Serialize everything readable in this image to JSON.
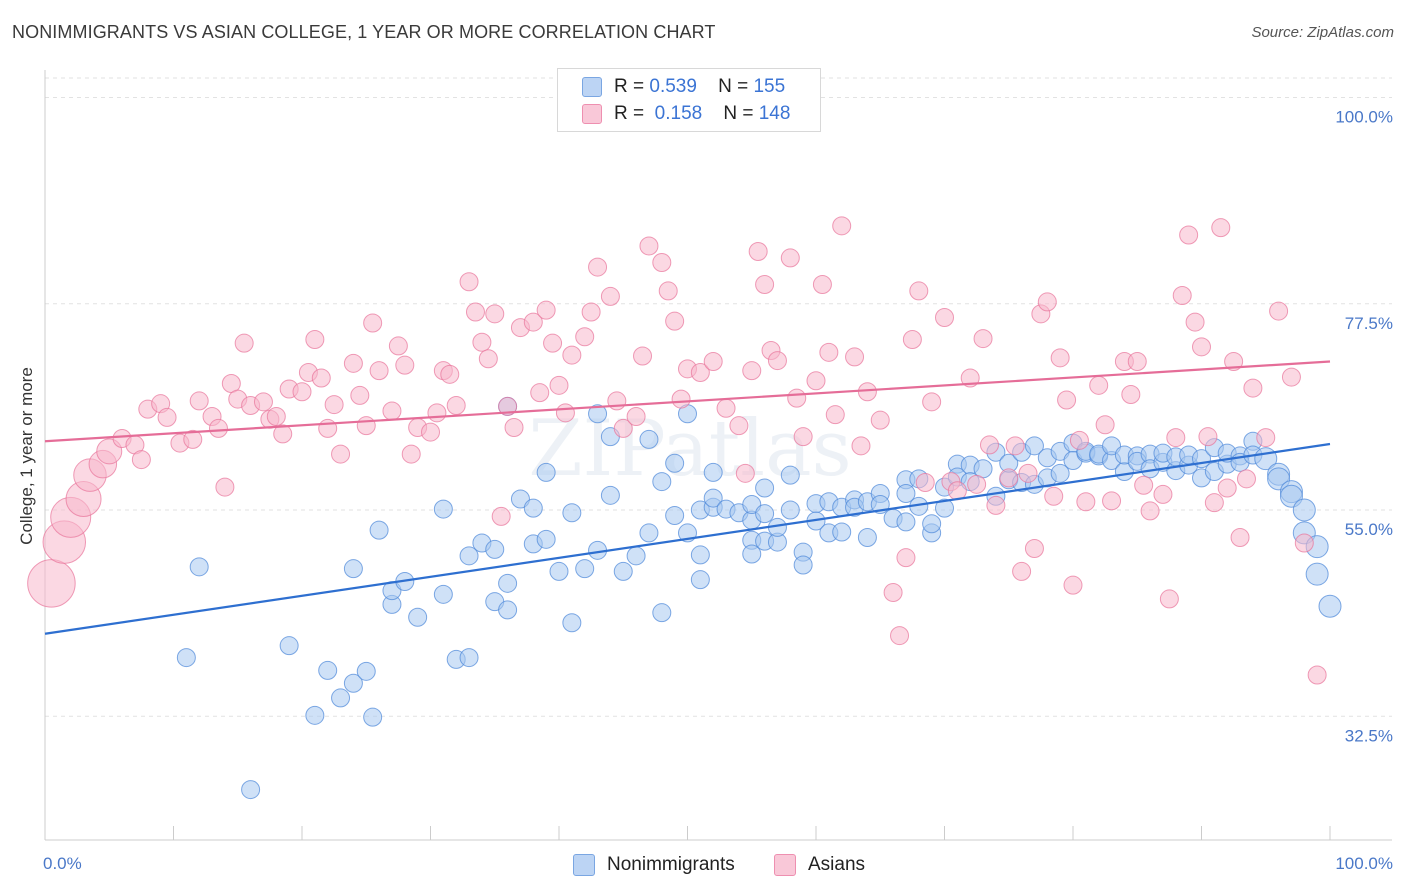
{
  "chart_data": {
    "type": "scatter",
    "title": "NONIMMIGRANTS VS ASIAN COLLEGE, 1 YEAR OR MORE CORRELATION CHART",
    "source": "Source: ZipAtlas.com",
    "xlabel": "",
    "ylabel": "College, 1 year or more",
    "xlim": [
      0,
      100
    ],
    "ylim": [
      19,
      103
    ],
    "x_tick_labels": [
      "0.0%",
      "100.0%"
    ],
    "y_ticks": [
      {
        "value": 100.0,
        "label": "100.0%"
      },
      {
        "value": 77.5,
        "label": "77.5%"
      },
      {
        "value": 55.0,
        "label": "55.0%"
      },
      {
        "value": 32.5,
        "label": "32.5%"
      }
    ],
    "legend": {
      "rows": [
        {
          "r_label": "R =",
          "r_value": "0.539",
          "n_label": "N =",
          "n_value": "155"
        },
        {
          "r_label": "R =",
          "r_value": "0.158",
          "n_label": "N =",
          "n_value": "148"
        }
      ]
    },
    "watermark": "ZIPatlas",
    "series": [
      {
        "name": "Nonimmigrants",
        "color": "#a8c8f0",
        "stroke": "#4a86d8",
        "trend_color": "#2e6fd0",
        "trend": {
          "x0": 0,
          "y0": 41.5,
          "x1": 100,
          "y1": 62.2
        },
        "points": [
          [
            12,
            48.8
          ],
          [
            11,
            38.9
          ],
          [
            19,
            40.2
          ],
          [
            16,
            24.5
          ],
          [
            21,
            32.6
          ],
          [
            22,
            37.5
          ],
          [
            23,
            34.5
          ],
          [
            24,
            36.1
          ],
          [
            25,
            37.4
          ],
          [
            25.5,
            32.4
          ],
          [
            24,
            48.6
          ],
          [
            27,
            44.7
          ],
          [
            27,
            46.2
          ],
          [
            26,
            52.8
          ],
          [
            29,
            43.3
          ],
          [
            28,
            47.2
          ],
          [
            31,
            55.1
          ],
          [
            31,
            45.8
          ],
          [
            33,
            50.0
          ],
          [
            32,
            38.7
          ],
          [
            33,
            38.9
          ],
          [
            34,
            51.4
          ],
          [
            35,
            50.7
          ],
          [
            35,
            45.0
          ],
          [
            36,
            47.0
          ],
          [
            36,
            44.1
          ],
          [
            37,
            56.2
          ],
          [
            36,
            66.3
          ],
          [
            38,
            51.3
          ],
          [
            38,
            55.2
          ],
          [
            39,
            51.8
          ],
          [
            39,
            59.1
          ],
          [
            40,
            48.3
          ],
          [
            41,
            54.7
          ],
          [
            41,
            42.7
          ],
          [
            42,
            48.6
          ],
          [
            43,
            65.5
          ],
          [
            43,
            50.6
          ],
          [
            44,
            56.6
          ],
          [
            44,
            63.0
          ],
          [
            45,
            48.3
          ],
          [
            46,
            50.0
          ],
          [
            47,
            52.5
          ],
          [
            47,
            62.7
          ],
          [
            48,
            58.1
          ],
          [
            48,
            43.8
          ],
          [
            49,
            54.4
          ],
          [
            49,
            60.1
          ],
          [
            50,
            52.5
          ],
          [
            50,
            65.5
          ],
          [
            51,
            47.4
          ],
          [
            51,
            50.1
          ],
          [
            51,
            55.0
          ],
          [
            52,
            59.1
          ],
          [
            52,
            55.3
          ],
          [
            52,
            56.3
          ],
          [
            53,
            55.1
          ],
          [
            54,
            54.7
          ],
          [
            55,
            51.7
          ],
          [
            55,
            53.9
          ],
          [
            55,
            50.2
          ],
          [
            55,
            55.6
          ],
          [
            56,
            51.6
          ],
          [
            56,
            57.4
          ],
          [
            56,
            54.6
          ],
          [
            57,
            51.5
          ],
          [
            57,
            53.1
          ],
          [
            58,
            58.8
          ],
          [
            58,
            55.0
          ],
          [
            59,
            50.4
          ],
          [
            59,
            49.0
          ],
          [
            60,
            55.7
          ],
          [
            60,
            53.8
          ],
          [
            61,
            52.5
          ],
          [
            61,
            55.9
          ],
          [
            62,
            52.6
          ],
          [
            62,
            55.3
          ],
          [
            63,
            56.1
          ],
          [
            63,
            55.3
          ],
          [
            64,
            55.9
          ],
          [
            64,
            52.0
          ],
          [
            65,
            56.8
          ],
          [
            65,
            55.6
          ],
          [
            66,
            54.1
          ],
          [
            67,
            53.7
          ],
          [
            67,
            58.3
          ],
          [
            67,
            56.8
          ],
          [
            68,
            55.4
          ],
          [
            68,
            58.4
          ],
          [
            69,
            52.5
          ],
          [
            69,
            53.5
          ],
          [
            70,
            55.2
          ],
          [
            70,
            57.5
          ],
          [
            71,
            60.0
          ],
          [
            71,
            58.6
          ],
          [
            72,
            59.9
          ],
          [
            72,
            58.1
          ],
          [
            73,
            59.5
          ],
          [
            74,
            61.3
          ],
          [
            74,
            56.5
          ],
          [
            75,
            58.3
          ],
          [
            75,
            60.1
          ],
          [
            76,
            61.3
          ],
          [
            76,
            58.0
          ],
          [
            77,
            62.0
          ],
          [
            77,
            57.8
          ],
          [
            78,
            58.5
          ],
          [
            78,
            60.7
          ],
          [
            79,
            61.4
          ],
          [
            79,
            59.0
          ],
          [
            80,
            62.3
          ],
          [
            80,
            60.4
          ],
          [
            81,
            61.2
          ],
          [
            81,
            61.4
          ],
          [
            82,
            60.9
          ],
          [
            82,
            61.1
          ],
          [
            83,
            60.4
          ],
          [
            83,
            62.0
          ],
          [
            84,
            59.2
          ],
          [
            84,
            61.0
          ],
          [
            85,
            60.9
          ],
          [
            85,
            60.3
          ],
          [
            86,
            61.1
          ],
          [
            86,
            59.5
          ],
          [
            87,
            60.2
          ],
          [
            87,
            61.2
          ],
          [
            88,
            59.3
          ],
          [
            88,
            60.8
          ],
          [
            89,
            59.9
          ],
          [
            89,
            61.0
          ],
          [
            90,
            60.6
          ],
          [
            90,
            58.5
          ],
          [
            91,
            59.2
          ],
          [
            91,
            61.8
          ],
          [
            92,
            60.0
          ],
          [
            92,
            61.2
          ],
          [
            93,
            60.9
          ],
          [
            93,
            60.2
          ],
          [
            94,
            62.5
          ],
          [
            94,
            61.0
          ],
          [
            95,
            60.6
          ],
          [
            96,
            58.9
          ],
          [
            96,
            58.4
          ],
          [
            97,
            57.0
          ],
          [
            97,
            56.5
          ],
          [
            98,
            55.0
          ],
          [
            98,
            52.5
          ],
          [
            99,
            51.0
          ],
          [
            99,
            48.0
          ],
          [
            100,
            44.5
          ]
        ]
      },
      {
        "name": "Asians",
        "color": "#f7b8cc",
        "stroke": "#e8739a",
        "trend_color": "#e56d98",
        "trend": {
          "x0": 0,
          "y0": 62.5,
          "x1": 100,
          "y1": 71.2
        },
        "points": [
          [
            0.5,
            47.0
          ],
          [
            1.5,
            51.5
          ],
          [
            2,
            54.2
          ],
          [
            3,
            56.2
          ],
          [
            3.5,
            58.8
          ],
          [
            4.5,
            60.0
          ],
          [
            5,
            61.4
          ],
          [
            6,
            62.8
          ],
          [
            7,
            62.1
          ],
          [
            7.5,
            60.5
          ],
          [
            8,
            66.0
          ],
          [
            9,
            66.6
          ],
          [
            9.5,
            65.1
          ],
          [
            10.5,
            62.3
          ],
          [
            11.5,
            62.7
          ],
          [
            12,
            66.9
          ],
          [
            13,
            65.2
          ],
          [
            13.5,
            63.9
          ],
          [
            14,
            57.5
          ],
          [
            14.5,
            68.8
          ],
          [
            15,
            67.1
          ],
          [
            15.5,
            73.2
          ],
          [
            16,
            66.4
          ],
          [
            17,
            66.8
          ],
          [
            17.5,
            64.9
          ],
          [
            18,
            65.2
          ],
          [
            18.5,
            63.3
          ],
          [
            19,
            68.2
          ],
          [
            20,
            67.9
          ],
          [
            20.5,
            70.0
          ],
          [
            21,
            73.6
          ],
          [
            21.5,
            69.4
          ],
          [
            22,
            63.9
          ],
          [
            22.5,
            66.5
          ],
          [
            23,
            61.1
          ],
          [
            24,
            71.0
          ],
          [
            24.5,
            67.5
          ],
          [
            25,
            64.2
          ],
          [
            25.5,
            75.4
          ],
          [
            26,
            70.2
          ],
          [
            27,
            65.8
          ],
          [
            27.5,
            72.9
          ],
          [
            28,
            70.8
          ],
          [
            28.5,
            61.1
          ],
          [
            29,
            64.0
          ],
          [
            30,
            63.5
          ],
          [
            30.5,
            65.6
          ],
          [
            31,
            70.2
          ],
          [
            31.5,
            69.8
          ],
          [
            32,
            66.4
          ],
          [
            33,
            79.9
          ],
          [
            33.5,
            76.6
          ],
          [
            34,
            73.3
          ],
          [
            34.5,
            71.5
          ],
          [
            35,
            76.4
          ],
          [
            35.5,
            54.3
          ],
          [
            36,
            66.3
          ],
          [
            36.5,
            64.0
          ],
          [
            37,
            74.9
          ],
          [
            38,
            75.5
          ],
          [
            38.5,
            67.8
          ],
          [
            39,
            76.8
          ],
          [
            39.5,
            73.2
          ],
          [
            40,
            68.6
          ],
          [
            40.5,
            65.6
          ],
          [
            41,
            71.9
          ],
          [
            42,
            73.9
          ],
          [
            42.5,
            76.6
          ],
          [
            43,
            81.5
          ],
          [
            44,
            78.3
          ],
          [
            44.5,
            66.9
          ],
          [
            45,
            63.9
          ],
          [
            46,
            65.2
          ],
          [
            46.5,
            71.8
          ],
          [
            47,
            83.8
          ],
          [
            48,
            82.0
          ],
          [
            48.5,
            78.9
          ],
          [
            49,
            75.6
          ],
          [
            49.5,
            67.1
          ],
          [
            50,
            70.4
          ],
          [
            51,
            70.0
          ],
          [
            52,
            71.2
          ],
          [
            53,
            66.1
          ],
          [
            54,
            64.2
          ],
          [
            54.5,
            59.0
          ],
          [
            55,
            70.2
          ],
          [
            55.5,
            83.2
          ],
          [
            56,
            79.6
          ],
          [
            56.5,
            72.4
          ],
          [
            57,
            71.3
          ],
          [
            58,
            82.5
          ],
          [
            58.5,
            67.2
          ],
          [
            59,
            63.0
          ],
          [
            60,
            69.1
          ],
          [
            60.5,
            79.6
          ],
          [
            61,
            72.2
          ],
          [
            61.5,
            65.4
          ],
          [
            62,
            86.0
          ],
          [
            63,
            71.7
          ],
          [
            63.5,
            62.0
          ],
          [
            64,
            67.9
          ],
          [
            65,
            64.8
          ],
          [
            66,
            46.0
          ],
          [
            66.5,
            41.3
          ],
          [
            67,
            49.8
          ],
          [
            67.5,
            73.6
          ],
          [
            68,
            78.9
          ],
          [
            68.5,
            58.0
          ],
          [
            69,
            66.8
          ],
          [
            70,
            76.0
          ],
          [
            70.5,
            58.1
          ],
          [
            71,
            57.1
          ],
          [
            72,
            69.4
          ],
          [
            72.5,
            57.8
          ],
          [
            73,
            73.7
          ],
          [
            73.5,
            62.1
          ],
          [
            74,
            55.5
          ],
          [
            75,
            58.5
          ],
          [
            75.5,
            62.0
          ],
          [
            76,
            48.3
          ],
          [
            76.5,
            59.0
          ],
          [
            77,
            50.8
          ],
          [
            77.5,
            76.4
          ],
          [
            78,
            77.7
          ],
          [
            78.5,
            56.5
          ],
          [
            79,
            71.6
          ],
          [
            79.5,
            67.0
          ],
          [
            80,
            46.8
          ],
          [
            80.5,
            62.6
          ],
          [
            81,
            55.9
          ],
          [
            82,
            68.6
          ],
          [
            82.5,
            64.3
          ],
          [
            83,
            56.0
          ],
          [
            84,
            71.2
          ],
          [
            84.5,
            67.6
          ],
          [
            85,
            71.2
          ],
          [
            85.5,
            57.7
          ],
          [
            86,
            54.9
          ],
          [
            87,
            56.7
          ],
          [
            87.5,
            45.3
          ],
          [
            88,
            62.9
          ],
          [
            88.5,
            78.4
          ],
          [
            89,
            85.0
          ],
          [
            89.5,
            75.5
          ],
          [
            90,
            72.8
          ],
          [
            90.5,
            63.0
          ],
          [
            91,
            55.8
          ],
          [
            91.5,
            85.8
          ],
          [
            92,
            57.4
          ],
          [
            92.5,
            71.2
          ],
          [
            93,
            52.0
          ],
          [
            93.5,
            58.4
          ],
          [
            94,
            68.3
          ],
          [
            95,
            62.9
          ],
          [
            96,
            76.7
          ],
          [
            97,
            69.5
          ],
          [
            98,
            51.4
          ],
          [
            99,
            37.0
          ]
        ]
      }
    ],
    "bottom_legend": [
      "Nonimmigrants",
      "Asians"
    ]
  }
}
